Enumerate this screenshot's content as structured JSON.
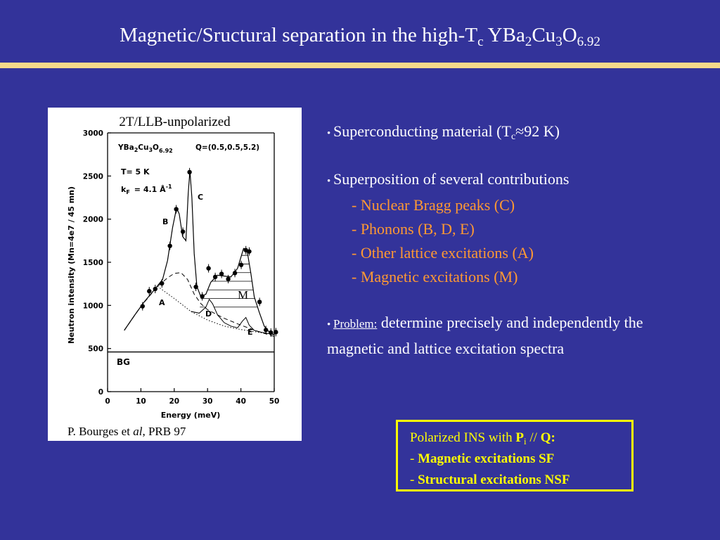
{
  "title": {
    "main": "Magnetic/Sructural separation in the high-T",
    "sub_c": "c",
    "formula_1": " YBa",
    "sub_2": "2",
    "formula_2": "Cu",
    "sub_3": "3",
    "formula_3": "O",
    "sub_o": "6.92"
  },
  "figure": {
    "top_label": "2T/LLB-unpolarized",
    "citation_prefix": "P. Bourges et ",
    "citation_italic": "al",
    "citation_suffix": ", PRB 97",
    "panel_formula": "YBa",
    "panel_formula_sub1": "2",
    "panel_formula_mid": "Cu",
    "panel_formula_sub2": "3",
    "panel_formula_end": "O",
    "panel_formula_sub3": "6.92",
    "q_vector": "Q=(0.5,0.5,5.2)",
    "temperature": "T= 5 K",
    "kf_label": "k",
    "kf_sub": "F",
    "kf_value": "= 4.1 Å",
    "kf_exp": "-1",
    "ylabel": "Neutron intensity (Mn=4e7 / 45 mn)",
    "xlabel": "Energy (meV)",
    "bg_label": "BG",
    "peak_labels": [
      "A",
      "B",
      "C",
      "D",
      "E",
      "M"
    ]
  },
  "chart_data": {
    "type": "scatter",
    "xlabel": "Energy (meV)",
    "ylabel": "Neutron intensity (Mn=4e7 / 45 mn)",
    "xlim": [
      0,
      50
    ],
    "ylim": [
      0,
      3000
    ],
    "xticks": [
      0,
      10,
      20,
      30,
      40,
      50
    ],
    "yticks": [
      0,
      500,
      1000,
      1500,
      2000,
      2500,
      3000
    ],
    "points": [
      {
        "x": 10.5,
        "y": 990
      },
      {
        "x": 12.5,
        "y": 1165
      },
      {
        "x": 14.3,
        "y": 1190
      },
      {
        "x": 16.3,
        "y": 1255
      },
      {
        "x": 18.7,
        "y": 1690
      },
      {
        "x": 20.6,
        "y": 2115
      },
      {
        "x": 22.6,
        "y": 1855
      },
      {
        "x": 24.6,
        "y": 2545
      },
      {
        "x": 26.5,
        "y": 1215
      },
      {
        "x": 28.4,
        "y": 1105
      },
      {
        "x": 30.3,
        "y": 1430
      },
      {
        "x": 32.3,
        "y": 1330
      },
      {
        "x": 34.2,
        "y": 1365
      },
      {
        "x": 36.2,
        "y": 1305
      },
      {
        "x": 38.2,
        "y": 1375
      },
      {
        "x": 40.1,
        "y": 1470
      },
      {
        "x": 41.5,
        "y": 1640
      },
      {
        "x": 42.5,
        "y": 1625
      },
      {
        "x": 45.6,
        "y": 1040
      },
      {
        "x": 47.5,
        "y": 715
      },
      {
        "x": 49.0,
        "y": 685
      },
      {
        "x": 50.5,
        "y": 690
      }
    ],
    "background_level": 460,
    "fit_curve": [
      [
        5,
        710
      ],
      [
        8,
        880
      ],
      [
        11,
        1040
      ],
      [
        14,
        1180
      ],
      [
        16.5,
        1300
      ],
      [
        18,
        1520
      ],
      [
        19.5,
        1900
      ],
      [
        20.7,
        2130
      ],
      [
        21.5,
        2060
      ],
      [
        22.5,
        1800
      ],
      [
        23.5,
        1750
      ],
      [
        24.2,
        2300
      ],
      [
        24.7,
        2560
      ],
      [
        25.3,
        2250
      ],
      [
        26,
        1600
      ],
      [
        26.8,
        1220
      ],
      [
        28,
        1100
      ],
      [
        29.5,
        1130
      ],
      [
        31,
        1270
      ],
      [
        33,
        1350
      ],
      [
        35,
        1340
      ],
      [
        37,
        1330
      ],
      [
        39,
        1430
      ],
      [
        40.8,
        1660
      ],
      [
        41.8,
        1650
      ],
      [
        43,
        1370
      ],
      [
        44,
        1100
      ],
      [
        45.5,
        920
      ],
      [
        47,
        760
      ],
      [
        48.5,
        690
      ],
      [
        50,
        660
      ]
    ],
    "dashed_curve": [
      [
        5,
        710
      ],
      [
        10,
        990
      ],
      [
        15,
        1220
      ],
      [
        18,
        1320
      ],
      [
        20,
        1370
      ],
      [
        22,
        1380
      ],
      [
        24,
        1300
      ],
      [
        26,
        1130
      ],
      [
        28,
        1020
      ],
      [
        30,
        950
      ],
      [
        35,
        850
      ],
      [
        40,
        770
      ],
      [
        45,
        700
      ],
      [
        50,
        640
      ]
    ],
    "dotted_curve": [
      [
        15,
        1220
      ],
      [
        20,
        1080
      ],
      [
        25,
        930
      ],
      [
        30,
        830
      ],
      [
        35,
        760
      ],
      [
        40,
        720
      ],
      [
        45,
        690
      ],
      [
        50,
        660
      ]
    ],
    "phonon_curve": [
      [
        25,
        930
      ],
      [
        27.5,
        910
      ],
      [
        29.5,
        980
      ],
      [
        30.5,
        1070
      ],
      [
        31.5,
        1020
      ],
      [
        33,
        890
      ],
      [
        35,
        800
      ],
      [
        37,
        760
      ],
      [
        39,
        740
      ],
      [
        40.5,
        820
      ],
      [
        41.5,
        860
      ],
      [
        42.5,
        770
      ],
      [
        44,
        710
      ],
      [
        46,
        690
      ],
      [
        50,
        660
      ]
    ],
    "hatch_levels": [
      980,
      1080,
      1180,
      1280,
      1380,
      1480,
      1580
    ],
    "annotations": [
      "A",
      "B",
      "C",
      "D",
      "E",
      "M",
      "BG"
    ]
  },
  "bullets": {
    "b1_bullet": "• ",
    "b1_text": "Superconducting material (T",
    "b1_sub": "c",
    "b1_end": "≈92 K)",
    "b2_bullet": "• ",
    "b2_text": "Superposition of several contributions",
    "items": [
      "- Nuclear Bragg peaks (C)",
      "- Phonons (B, D, E)",
      "- Other lattice excitations (A)",
      "- Magnetic excitations (M)"
    ],
    "b3_bullet": "• ",
    "b3_problem": "Problem:",
    "b3_text": " determine precisely and independently the magnetic and lattice excitation spectra"
  },
  "box": {
    "line1_pre": "Polarized INS with ",
    "line1_p": "P",
    "line1_sub": "i",
    "line1_mid": " // ",
    "line1_q": "Q:",
    "line2_dash": "- ",
    "line2_bold": "Magnetic excitations SF",
    "line3_dash": "- ",
    "line3_bold": "Structural excitations NSF"
  },
  "colors": {
    "background": "#33339a",
    "rule": "#f5d98a",
    "orange": "#ff9933",
    "box": "#ffff00"
  }
}
